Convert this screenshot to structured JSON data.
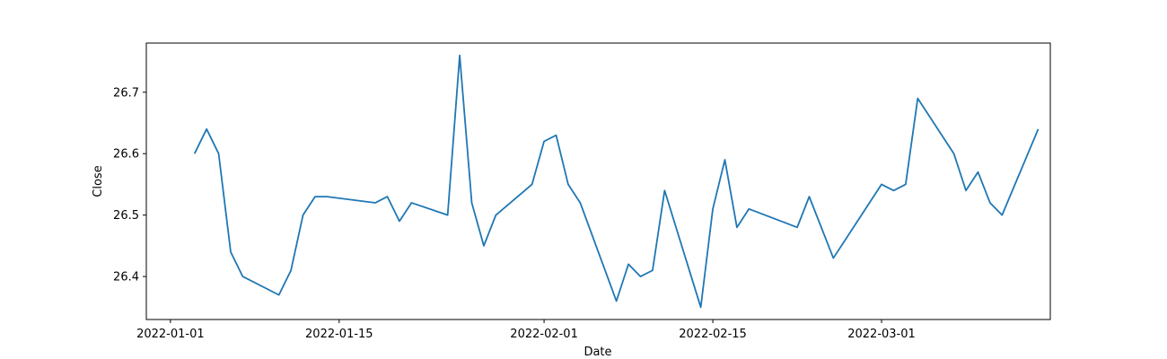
{
  "chart_data": {
    "type": "line",
    "xlabel": "Date",
    "ylabel": "Close",
    "xlim": [
      "2021-12-30",
      "2022-03-15"
    ],
    "ylim": [
      26.33,
      26.78
    ],
    "x_ticks": [
      {
        "date": "2022-01-01",
        "label": "2022-01-01"
      },
      {
        "date": "2022-01-15",
        "label": "2022-01-15"
      },
      {
        "date": "2022-02-01",
        "label": "2022-02-01"
      },
      {
        "date": "2022-02-15",
        "label": "2022-02-15"
      },
      {
        "date": "2022-03-01",
        "label": "2022-03-01"
      }
    ],
    "y_ticks": [
      {
        "value": 26.4,
        "label": "26.4"
      },
      {
        "value": 26.5,
        "label": "26.5"
      },
      {
        "value": 26.6,
        "label": "26.6"
      },
      {
        "value": 26.7,
        "label": "26.7"
      }
    ],
    "grid": false,
    "series": [
      {
        "color": "#1f77b4",
        "x": [
          "2022-01-03",
          "2022-01-04",
          "2022-01-05",
          "2022-01-06",
          "2022-01-07",
          "2022-01-10",
          "2022-01-11",
          "2022-01-12",
          "2022-01-13",
          "2022-01-14",
          "2022-01-18",
          "2022-01-19",
          "2022-01-20",
          "2022-01-21",
          "2022-01-24",
          "2022-01-25",
          "2022-01-26",
          "2022-01-27",
          "2022-01-28",
          "2022-01-31",
          "2022-02-01",
          "2022-02-02",
          "2022-02-03",
          "2022-02-04",
          "2022-02-07",
          "2022-02-08",
          "2022-02-09",
          "2022-02-10",
          "2022-02-11",
          "2022-02-14",
          "2022-02-15",
          "2022-02-16",
          "2022-02-17",
          "2022-02-18",
          "2022-02-22",
          "2022-02-23",
          "2022-02-25",
          "2022-03-01",
          "2022-03-02",
          "2022-03-03",
          "2022-03-04",
          "2022-03-07",
          "2022-03-08",
          "2022-03-09",
          "2022-03-10",
          "2022-03-11",
          "2022-03-14"
        ],
        "y": [
          26.6,
          26.64,
          26.6,
          26.44,
          26.4,
          26.37,
          26.41,
          26.5,
          26.53,
          26.53,
          26.52,
          26.53,
          26.49,
          26.52,
          26.5,
          26.76,
          26.52,
          26.45,
          26.5,
          26.55,
          26.62,
          26.63,
          26.55,
          26.52,
          26.36,
          26.42,
          26.4,
          26.41,
          26.54,
          26.35,
          26.51,
          26.59,
          26.48,
          26.51,
          26.48,
          26.53,
          26.43,
          26.55,
          26.54,
          26.55,
          26.69,
          26.6,
          26.54,
          26.57,
          26.52,
          26.5,
          26.64
        ]
      }
    ]
  }
}
